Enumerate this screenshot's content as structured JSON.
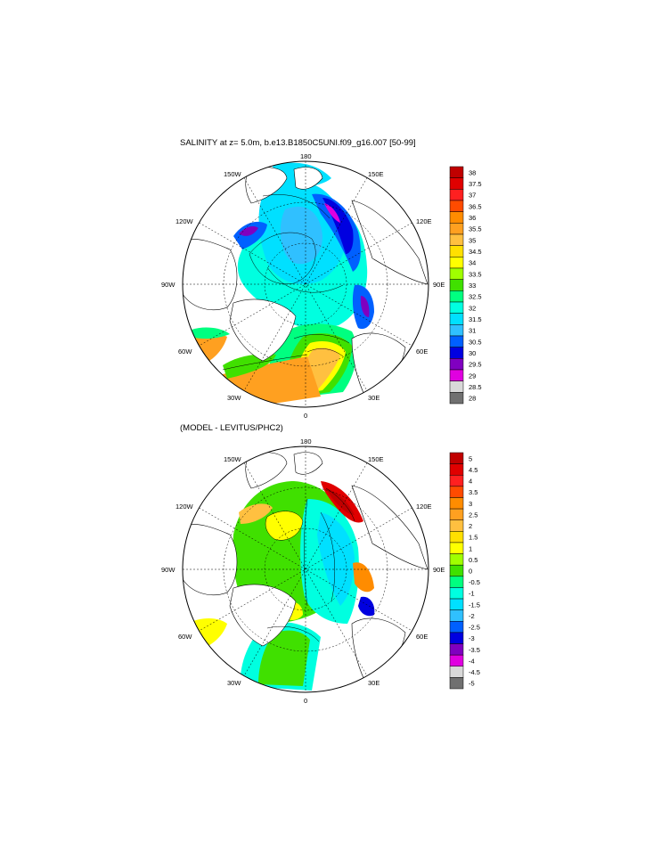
{
  "panels": [
    {
      "id": "salinity",
      "title": "SALINITY at z=   5.0m, b.e13.B1850C5UNI.f09_g16.007 [50-99]",
      "lon_labels": [
        "180",
        "150E",
        "120E",
        "90E",
        "60E",
        "30E",
        "0",
        "30W",
        "60W",
        "90W",
        "120W",
        "150W"
      ],
      "colorbar": {
        "labels": [
          "38",
          "37.5",
          "37",
          "36.5",
          "36",
          "35.5",
          "35",
          "34.5",
          "34",
          "33.5",
          "33",
          "32.5",
          "32",
          "31.5",
          "31",
          "30.5",
          "30",
          "29.5",
          "29",
          "28.5",
          "28"
        ],
        "colors": [
          "#c00000",
          "#e00000",
          "#ff2020",
          "#ff4b00",
          "#ff8c00",
          "#ffa020",
          "#ffc040",
          "#ffe000",
          "#ffff00",
          "#a0ff00",
          "#40e000",
          "#00ff80",
          "#00ffe0",
          "#00e0ff",
          "#30c0ff",
          "#0060ff",
          "#0000e0",
          "#8000c0",
          "#e000e0",
          "#d8d8d8",
          "#707070"
        ]
      }
    },
    {
      "id": "difference",
      "title": "(MODEL - LEVITUS/PHC2)",
      "lon_labels": [
        "180",
        "150E",
        "120E",
        "90E",
        "60E",
        "30E",
        "0",
        "30W",
        "60W",
        "90W",
        "120W",
        "150W"
      ],
      "colorbar": {
        "labels": [
          "5",
          "4.5",
          "4",
          "3.5",
          "3",
          "2.5",
          "2",
          "1.5",
          "1",
          "0.5",
          "0",
          "-0.5",
          "-1",
          "-1.5",
          "-2",
          "-2.5",
          "-3",
          "-3.5",
          "-4",
          "-4.5",
          "-5"
        ],
        "colors": [
          "#c00000",
          "#e00000",
          "#ff2020",
          "#ff4b00",
          "#ff8c00",
          "#ffa020",
          "#ffc040",
          "#ffe000",
          "#ffff00",
          "#a0ff00",
          "#40e000",
          "#00ff80",
          "#00ffe0",
          "#00e0ff",
          "#30c0ff",
          "#0060ff",
          "#0000e0",
          "#8000c0",
          "#e000e0",
          "#d8d8d8",
          "#707070"
        ]
      }
    }
  ]
}
